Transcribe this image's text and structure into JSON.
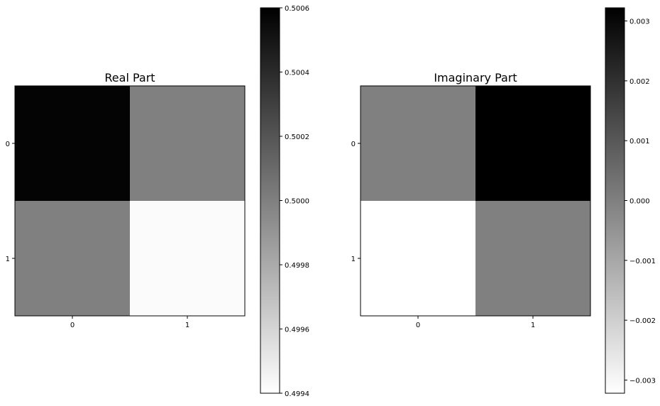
{
  "chart_data": [
    {
      "type": "heatmap",
      "title": "Real Part",
      "xlabel": "",
      "ylabel": "",
      "x_ticks": [
        "0",
        "1"
      ],
      "y_ticks": [
        "0",
        "1"
      ],
      "values": [
        [
          0.50058,
          0.5
        ],
        [
          0.5,
          0.49942
        ]
      ],
      "colormap": "gray_r",
      "colorbar": {
        "vmin": 0.4994,
        "vmax": 0.5006,
        "ticks": [
          "0.4994",
          "0.4996",
          "0.4998",
          "0.5000",
          "0.5002",
          "0.5004",
          "0.5006"
        ]
      }
    },
    {
      "type": "heatmap",
      "title": "Imaginary Part",
      "xlabel": "",
      "ylabel": "",
      "x_ticks": [
        "0",
        "1"
      ],
      "y_ticks": [
        "0",
        "1"
      ],
      "values": [
        [
          0.0,
          0.00322
        ],
        [
          -0.00322,
          0.0
        ]
      ],
      "colormap": "gray_r",
      "colorbar": {
        "vmin": -0.00322,
        "vmax": 0.00322,
        "ticks": [
          "−0.003",
          "−0.002",
          "−0.001",
          "0.000",
          "0.001",
          "0.002",
          "0.003"
        ],
        "tick_values": [
          -0.003,
          -0.002,
          -0.001,
          0.0,
          0.001,
          0.002,
          0.003
        ]
      }
    }
  ]
}
